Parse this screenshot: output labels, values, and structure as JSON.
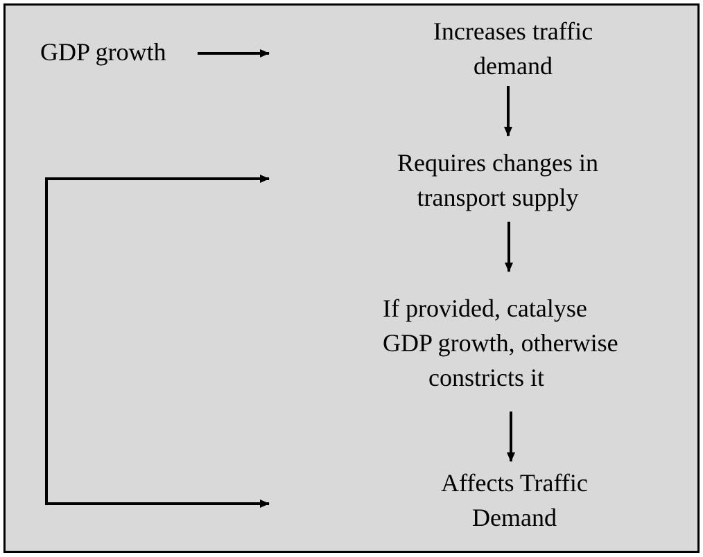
{
  "diagram": {
    "frame_fill": "#d9d9d9",
    "stroke_color": "#000000",
    "nodes": {
      "gdp_growth": {
        "lines": [
          "GDP growth"
        ]
      },
      "increases_traffic_demand": {
        "lines": [
          "Increases traffic",
          "demand"
        ]
      },
      "requires_changes": {
        "lines": [
          "Requires changes in",
          "transport supply"
        ]
      },
      "if_provided": {
        "lines": [
          "If provided, catalyse",
          "GDP growth, otherwise",
          "constricts it"
        ]
      },
      "affects_traffic_demand": {
        "lines": [
          "Affects Traffic",
          "Demand"
        ]
      }
    },
    "edges": [
      {
        "from": "gdp_growth",
        "to": "increases_traffic_demand"
      },
      {
        "from": "increases_traffic_demand",
        "to": "requires_changes"
      },
      {
        "from": "requires_changes",
        "to": "if_provided"
      },
      {
        "from": "if_provided",
        "to": "affects_traffic_demand"
      },
      {
        "from": "affects_traffic_demand",
        "to": "requires_changes",
        "kind": "feedback-loop"
      }
    ]
  }
}
